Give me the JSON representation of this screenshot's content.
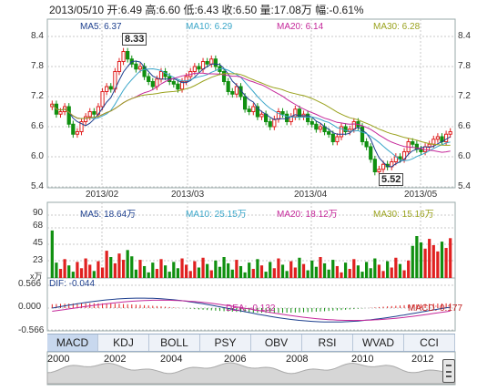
{
  "quote": "2013/05/10 开:6.49 高:6.60 低:6.43 收:6.50 量:17.08万 幅:-0.61%",
  "price_panel": {
    "ma_labels": [
      {
        "text": "MA5: 6.37",
        "color": "#1d3f8e"
      },
      {
        "text": "MA10: 6.29",
        "color": "#3aa6c9"
      },
      {
        "text": "MA20: 6.14",
        "color": "#c5289a"
      },
      {
        "text": "MA30: 6.28",
        "color": "#9aa21d"
      }
    ],
    "y_ticks": [
      "8.4",
      "7.8",
      "7.2",
      "6.6",
      "6.0",
      "5.4"
    ],
    "x_ticks": [
      "2013/02",
      "2013/03",
      "2013/04",
      "2013/05"
    ],
    "annotations": {
      "high": "8.33",
      "low": "5.52"
    }
  },
  "volume_panel": {
    "ma_labels": [
      {
        "text": "MA5: 18.64万",
        "color": "#1d3f8e"
      },
      {
        "text": "MA10: 25.15万",
        "color": "#3aa6c9"
      },
      {
        "text": "MA20: 18.12万",
        "color": "#c5289a"
      },
      {
        "text": "MA30: 15.16万",
        "color": "#9aa21d"
      }
    ],
    "y_ticks": [
      "90",
      "68",
      "45",
      "23"
    ],
    "unit": "x万"
  },
  "macd_panel": {
    "labels": [
      {
        "text": "DIF: -0.044",
        "color": "#1d3f8e"
      },
      {
        "text": "DEA: -0.132",
        "color": "#c5289a"
      },
      {
        "text": "MACD: 0.177",
        "color": "#c02020"
      }
    ],
    "y_ticks": [
      "0.566",
      "0.000",
      "-0.566"
    ]
  },
  "tabs": [
    "MACD",
    "KDJ",
    "BOLL",
    "PSY",
    "OBV",
    "RSI",
    "WVAD",
    "CCI"
  ],
  "timeline_years": [
    "2000",
    "2002",
    "2004",
    "2006",
    "2008",
    "2010",
    "2012"
  ],
  "colors": {
    "up": "#e02020",
    "down": "#109010",
    "grid": "#c8c8c8"
  }
}
